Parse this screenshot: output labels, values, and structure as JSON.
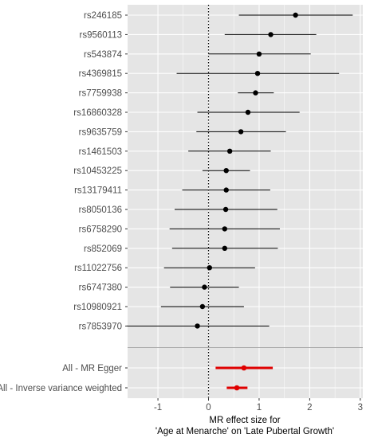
{
  "chart_data": {
    "type": "forest",
    "title": "",
    "xlabel": [
      "MR effect size for",
      "'Age at Menarche' on 'Late Pubertal Growth'"
    ],
    "ylabel": "",
    "xlim": [
      -1.6,
      3.05
    ],
    "xticks": [
      -1,
      0,
      1,
      2,
      3
    ],
    "reference_line": 0,
    "grid": true,
    "colors": {
      "panel": "#e5e5e5",
      "grid": "#ffffff",
      "snp": "#000000",
      "summary": "#e00000",
      "separator": "#a6a6a6"
    },
    "snps": [
      {
        "label": "rs246185",
        "estimate": 1.72,
        "lower": 0.6,
        "upper": 2.85
      },
      {
        "label": "rs9560113",
        "estimate": 1.23,
        "lower": 0.32,
        "upper": 2.13
      },
      {
        "label": "rs543874",
        "estimate": 1.0,
        "lower": 0.0,
        "upper": 2.02
      },
      {
        "label": "rs4369815",
        "estimate": 0.97,
        "lower": -0.63,
        "upper": 2.58
      },
      {
        "label": "rs7759938",
        "estimate": 0.93,
        "lower": 0.58,
        "upper": 1.29
      },
      {
        "label": "rs16860328",
        "estimate": 0.78,
        "lower": -0.22,
        "upper": 1.8
      },
      {
        "label": "rs9635759",
        "estimate": 0.64,
        "lower": -0.24,
        "upper": 1.53
      },
      {
        "label": "rs1461503",
        "estimate": 0.42,
        "lower": -0.4,
        "upper": 1.23
      },
      {
        "label": "rs10453225",
        "estimate": 0.35,
        "lower": -0.12,
        "upper": 0.82
      },
      {
        "label": "rs13179411",
        "estimate": 0.35,
        "lower": -0.52,
        "upper": 1.22
      },
      {
        "label": "rs8050136",
        "estimate": 0.34,
        "lower": -0.67,
        "upper": 1.36
      },
      {
        "label": "rs6758290",
        "estimate": 0.32,
        "lower": -0.77,
        "upper": 1.41
      },
      {
        "label": "rs852069",
        "estimate": 0.32,
        "lower": -0.72,
        "upper": 1.37
      },
      {
        "label": "rs11022756",
        "estimate": 0.02,
        "lower": -0.88,
        "upper": 0.92
      },
      {
        "label": "rs6747380",
        "estimate": -0.08,
        "lower": -0.76,
        "upper": 0.6
      },
      {
        "label": "rs10980921",
        "estimate": -0.12,
        "lower": -0.94,
        "upper": 0.7
      },
      {
        "label": "rs7853970",
        "estimate": -0.22,
        "lower": -1.62,
        "upper": 1.2
      }
    ],
    "summary": [
      {
        "label": "All - MR Egger",
        "estimate": 0.7,
        "lower": 0.14,
        "upper": 1.27
      },
      {
        "label": "All - Inverse variance weighted",
        "estimate": 0.56,
        "lower": 0.36,
        "upper": 0.77
      }
    ]
  }
}
